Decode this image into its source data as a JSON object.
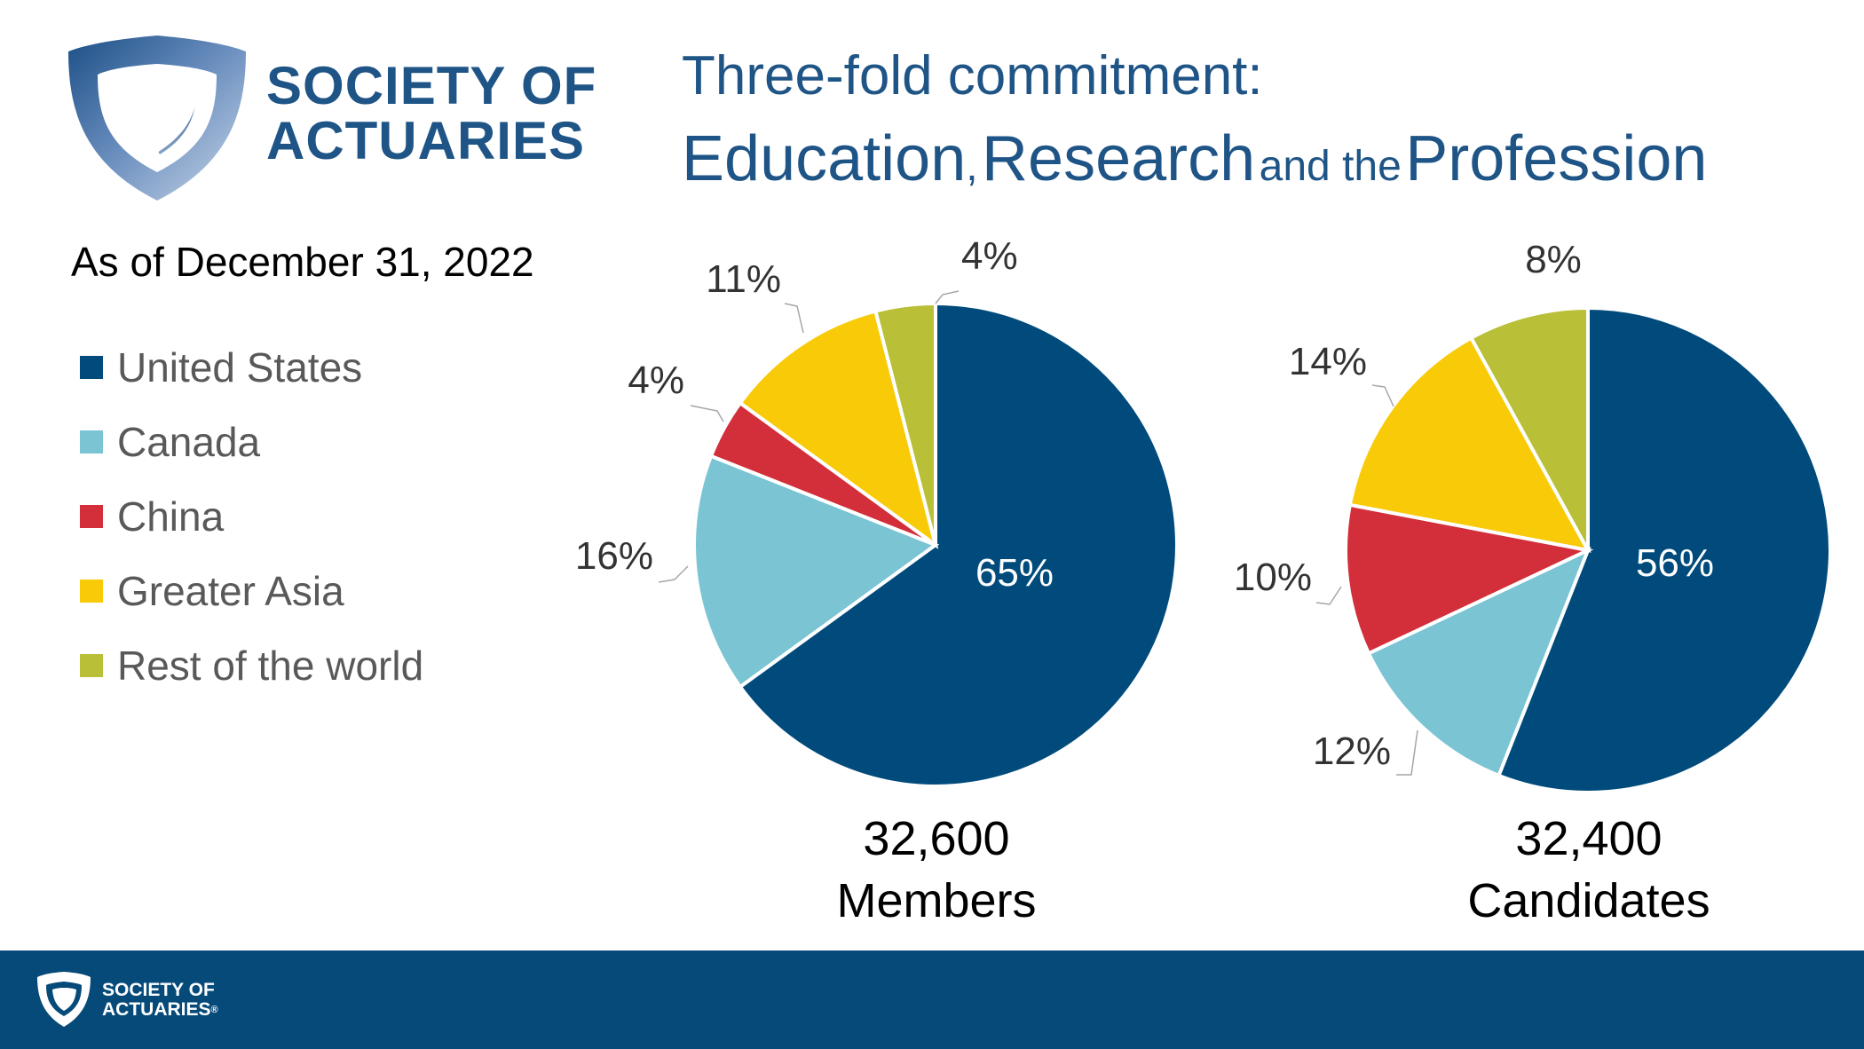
{
  "logo": {
    "line1": "SOCIETY OF",
    "line2": "ACTUARIES"
  },
  "title": {
    "line1": "Three-fold commitment:",
    "word1": "Education",
    "comma": ",",
    "word2": "Research",
    "connector": "and the",
    "word3": "Profession"
  },
  "as_of": "As of December 31, 2022",
  "legend": [
    {
      "label": "United States",
      "color": "#004b7b"
    },
    {
      "label": "Canada",
      "color": "#7ac4d4"
    },
    {
      "label": "China",
      "color": "#d32f3a"
    },
    {
      "label": "Greater Asia",
      "color": "#f8ca08"
    },
    {
      "label": "Rest of the world",
      "color": "#b9bf36"
    }
  ],
  "chart_data": [
    {
      "type": "pie",
      "categories": [
        "United States",
        "Canada",
        "China",
        "Greater Asia",
        "Rest of the world"
      ],
      "values": [
        65,
        16,
        4,
        11,
        4
      ],
      "labels": [
        "65%",
        "16%",
        "4%",
        "11%",
        "4%"
      ],
      "count": "32,600",
      "caption": "Members"
    },
    {
      "type": "pie",
      "categories": [
        "United States",
        "Canada",
        "China",
        "Greater Asia",
        "Rest of the world"
      ],
      "values": [
        56,
        12,
        10,
        14,
        8
      ],
      "labels": [
        "56%",
        "12%",
        "10%",
        "14%",
        "8%"
      ],
      "count": "32,400",
      "caption": "Candidates"
    }
  ],
  "footer": {
    "line1": "SOCIETY OF",
    "line2": "ACTUARIES",
    "mark": "®"
  }
}
